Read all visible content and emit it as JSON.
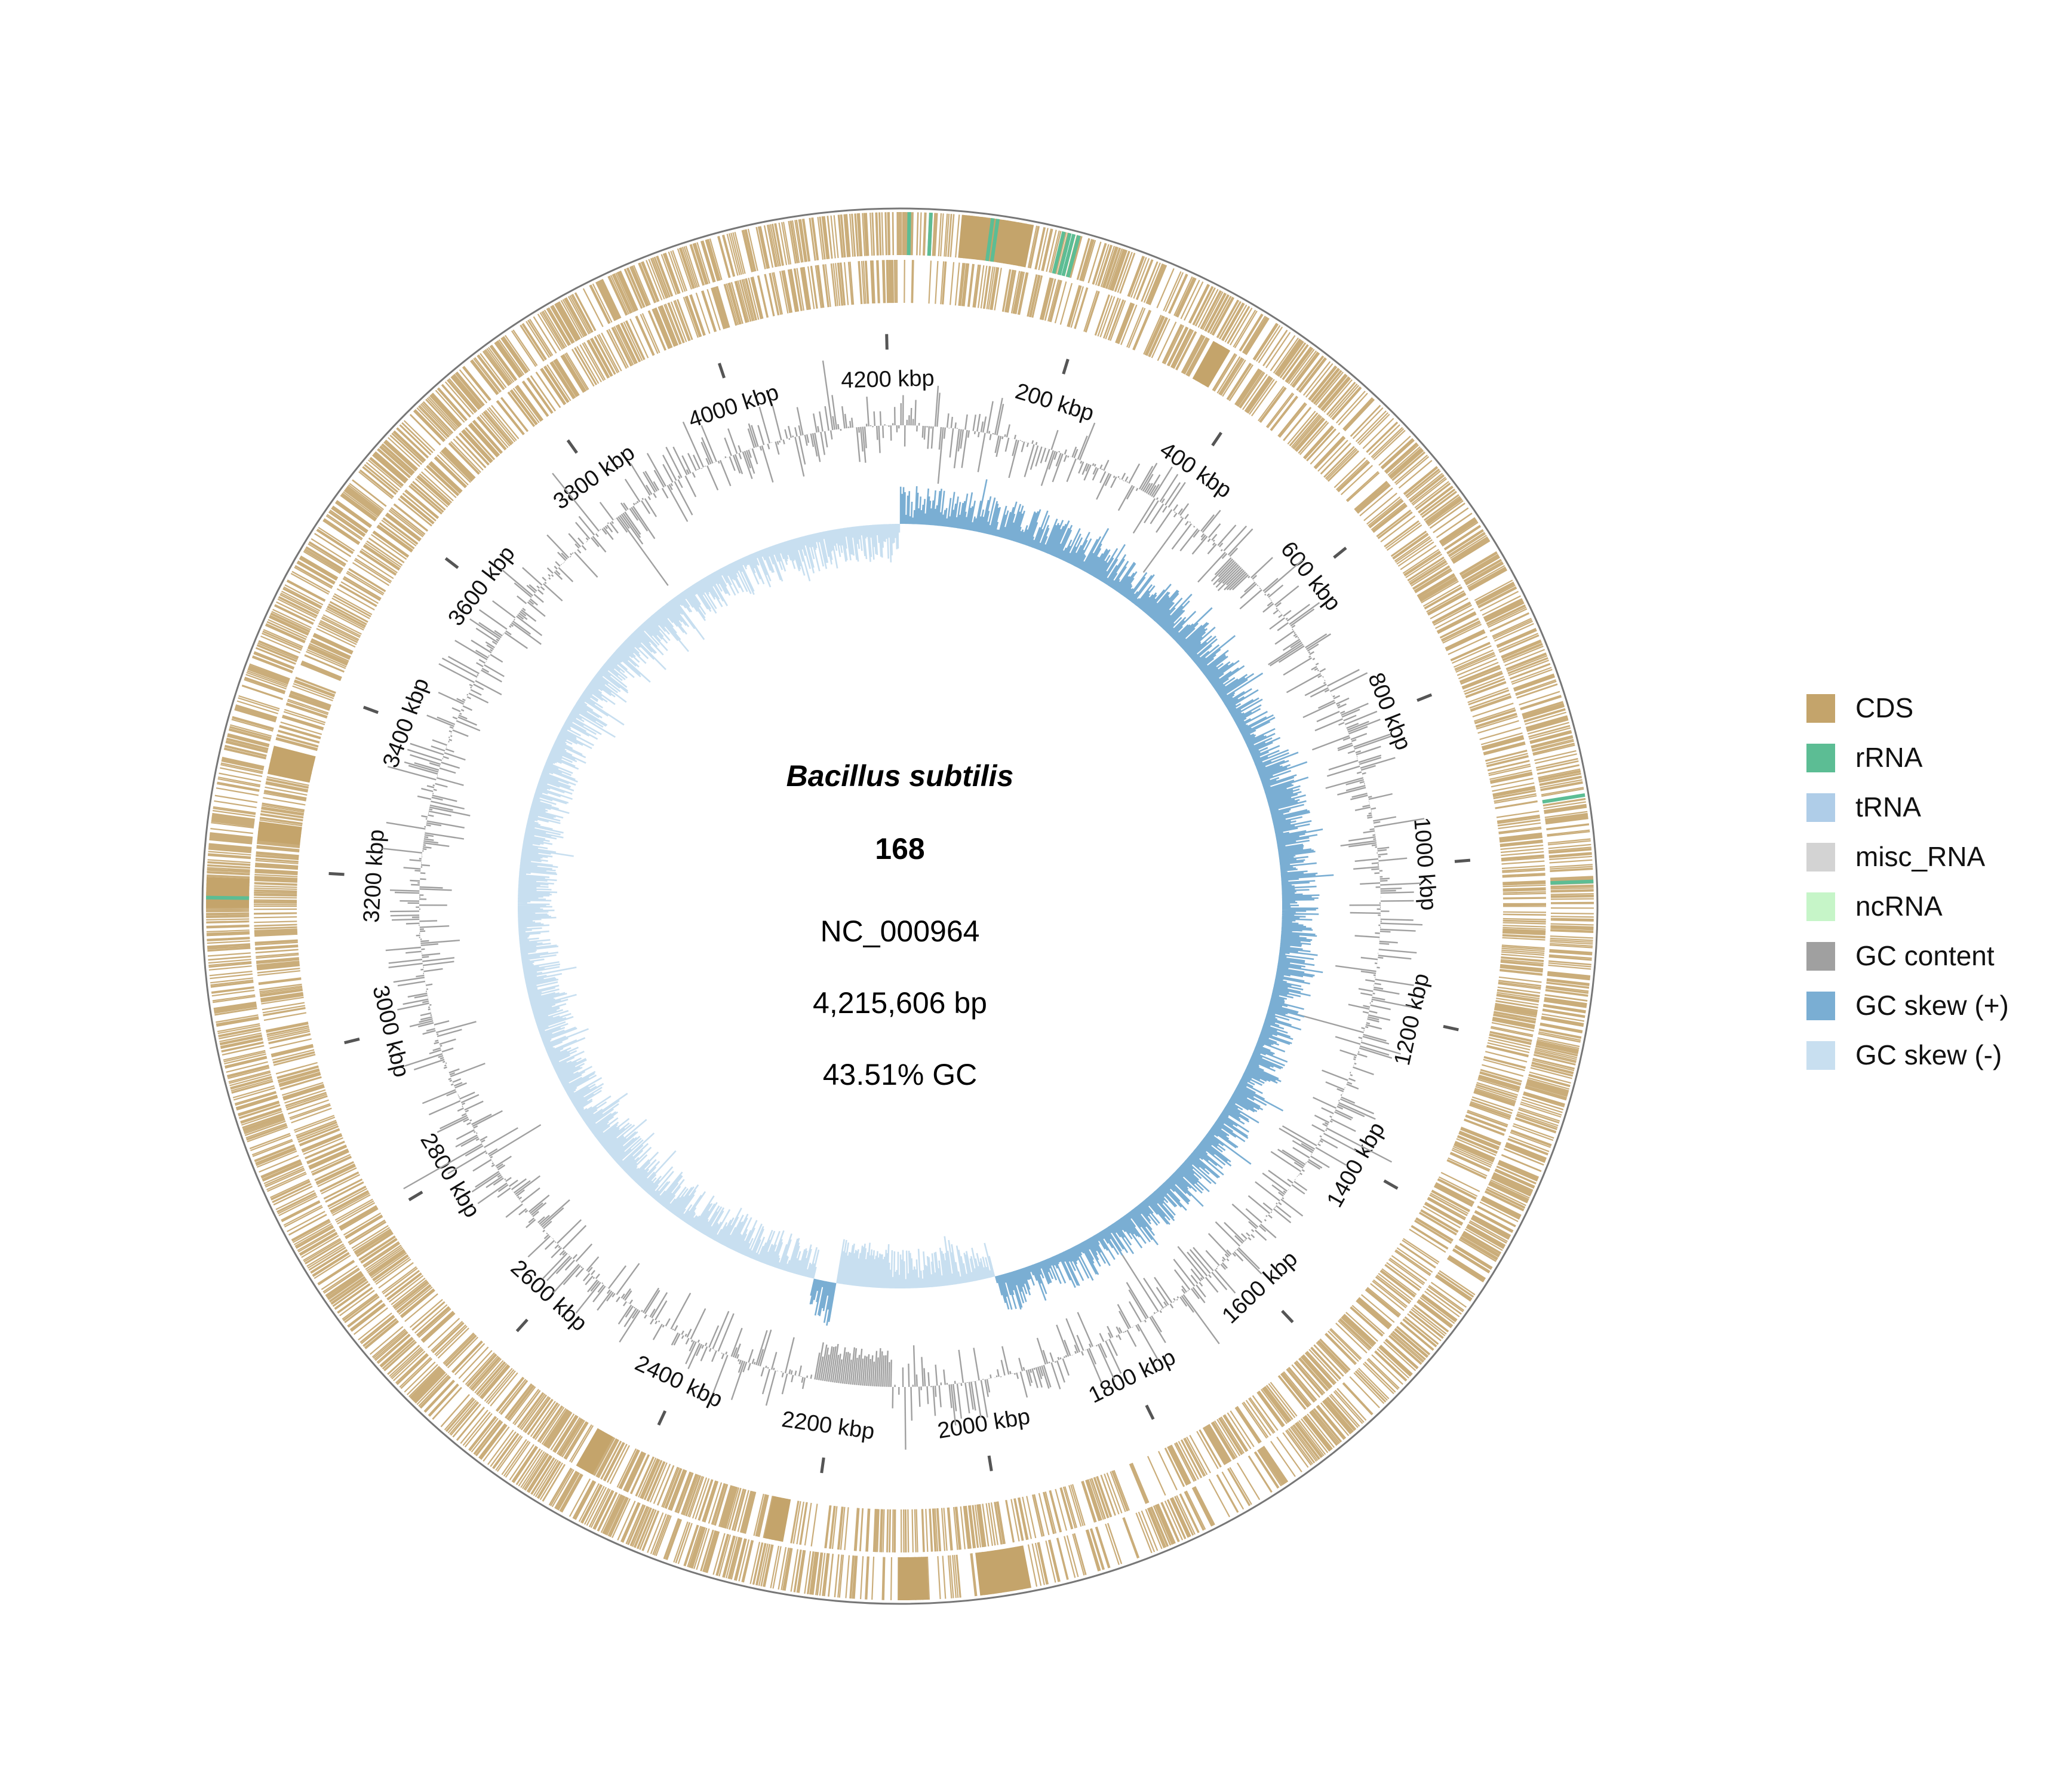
{
  "genome": {
    "organism": "Bacillus subtilis",
    "strain": "168",
    "accession": "NC_000964",
    "length_label": "4,215,606 bp",
    "gc_label": "43.51% GC",
    "length_bp": 4215606
  },
  "ticks": {
    "unit": "kbp",
    "values_kbp": [
      200,
      400,
      600,
      800,
      1000,
      1200,
      1400,
      1600,
      1800,
      2000,
      2200,
      2400,
      2600,
      2800,
      3000,
      3200,
      3400,
      3600,
      3800,
      4000,
      4200
    ],
    "labels": [
      "200 kbp",
      "400 kbp",
      "600 kbp",
      "800 kbp",
      "1000 kbp",
      "1200 kbp",
      "1400 kbp",
      "1600 kbp",
      "1800 kbp",
      "2000 kbp",
      "2200 kbp",
      "2400 kbp",
      "2600 kbp",
      "2800 kbp",
      "3000 kbp",
      "3200 kbp",
      "3400 kbp",
      "3600 kbp",
      "3800 kbp",
      "4000 kbp",
      "4200 kbp"
    ]
  },
  "legend": [
    {
      "label": "CDS",
      "color": "#c4a46b"
    },
    {
      "label": "rRNA",
      "color": "#5cbd94"
    },
    {
      "label": "tRNA",
      "color": "#afcde8"
    },
    {
      "label": "misc_RNA",
      "color": "#d3d3d3"
    },
    {
      "label": "ncRNA",
      "color": "#c6f5c8"
    },
    {
      "label": "GC content",
      "color": "#a0a0a0"
    },
    {
      "label": "GC skew (+)",
      "color": "#7aaed3"
    },
    {
      "label": "GC skew (-)",
      "color": "#c8dff0"
    }
  ],
  "features": {
    "rrna_positions_kbp": [
      9,
      30,
      90,
      95,
      160,
      166,
      170,
      175,
      946,
      1030,
      3170
    ],
    "skew_positive_range_kbp": [
      0,
      1940
    ],
    "skew_negative_dip_kbp": [
      2130,
      2230
    ]
  }
}
